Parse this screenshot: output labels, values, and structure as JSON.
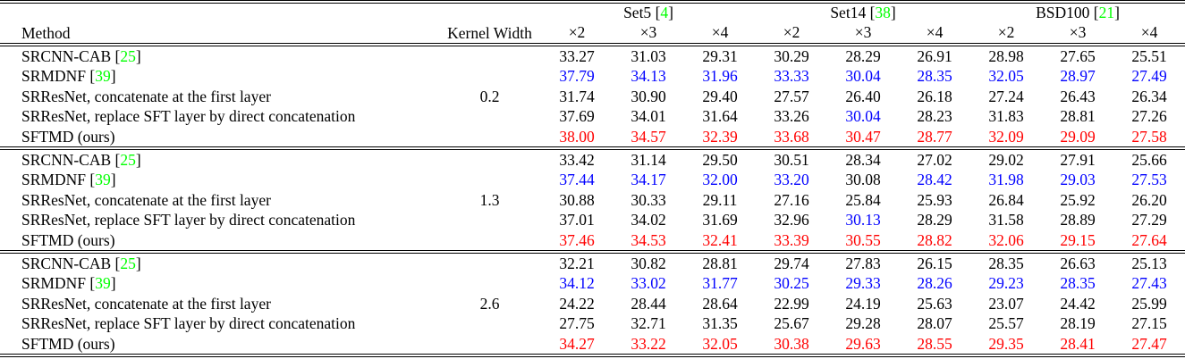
{
  "table": {
    "header": {
      "method_label": "Method",
      "kernel_width_label": "Kernel Width",
      "datasets": [
        {
          "name": "Set5",
          "cite": "4"
        },
        {
          "name": "Set14",
          "cite": "38"
        },
        {
          "name": "BSD100",
          "cite": "21"
        }
      ],
      "scales": [
        "×2",
        "×3",
        "×4"
      ]
    },
    "colors": {
      "k": "#000000",
      "b": "#0000ff",
      "r": "#ff0000",
      "citation": "#00ff00"
    },
    "groups": [
      {
        "kernel_width": "0.2",
        "rows": [
          {
            "method": "SRCNN-CAB",
            "cite": "25",
            "values": [
              "33.27",
              "31.03",
              "29.31",
              "30.29",
              "28.29",
              "26.91",
              "28.98",
              "27.65",
              "25.51"
            ],
            "value_colors": [
              "k",
              "k",
              "k",
              "k",
              "k",
              "k",
              "k",
              "k",
              "k"
            ]
          },
          {
            "method": "SRMDNF",
            "cite": "39",
            "values": [
              "37.79",
              "34.13",
              "31.96",
              "33.33",
              "30.04",
              "28.35",
              "32.05",
              "28.97",
              "27.49"
            ],
            "value_colors": [
              "b",
              "b",
              "b",
              "b",
              "b",
              "b",
              "b",
              "b",
              "b"
            ]
          },
          {
            "method": "SRResNet, concatenate at the first layer",
            "cite": "",
            "values": [
              "31.74",
              "30.90",
              "29.40",
              "27.57",
              "26.40",
              "26.18",
              "27.24",
              "26.43",
              "26.34"
            ],
            "value_colors": [
              "k",
              "k",
              "k",
              "k",
              "k",
              "k",
              "k",
              "k",
              "k"
            ]
          },
          {
            "method": "SRResNet, replace SFT layer by direct concatenation",
            "cite": "",
            "values": [
              "37.69",
              "34.01",
              "31.64",
              "33.26",
              "30.04",
              "28.23",
              "31.83",
              "28.81",
              "27.26"
            ],
            "value_colors": [
              "k",
              "k",
              "k",
              "k",
              "b",
              "k",
              "k",
              "k",
              "k"
            ]
          },
          {
            "method": "SFTMD (ours)",
            "cite": "",
            "values": [
              "38.00",
              "34.57",
              "32.39",
              "33.68",
              "30.47",
              "28.77",
              "32.09",
              "29.09",
              "27.58"
            ],
            "value_colors": [
              "r",
              "r",
              "r",
              "r",
              "r",
              "r",
              "r",
              "r",
              "r"
            ]
          }
        ]
      },
      {
        "kernel_width": "1.3",
        "rows": [
          {
            "method": "SRCNN-CAB",
            "cite": "25",
            "values": [
              "33.42",
              "31.14",
              "29.50",
              "30.51",
              "28.34",
              "27.02",
              "29.02",
              "27.91",
              "25.66"
            ],
            "value_colors": [
              "k",
              "k",
              "k",
              "k",
              "k",
              "k",
              "k",
              "k",
              "k"
            ]
          },
          {
            "method": "SRMDNF",
            "cite": "39",
            "values": [
              "37.44",
              "34.17",
              "32.00",
              "33.20",
              "30.08",
              "28.42",
              "31.98",
              "29.03",
              "27.53"
            ],
            "value_colors": [
              "b",
              "b",
              "b",
              "b",
              "k",
              "b",
              "b",
              "b",
              "b"
            ]
          },
          {
            "method": "SRResNet, concatenate at the first layer",
            "cite": "",
            "values": [
              "30.88",
              "30.33",
              "29.11",
              "27.16",
              "25.84",
              "25.93",
              "26.84",
              "25.92",
              "26.20"
            ],
            "value_colors": [
              "k",
              "k",
              "k",
              "k",
              "k",
              "k",
              "k",
              "k",
              "k"
            ]
          },
          {
            "method": "SRResNet, replace SFT layer by direct concatenation",
            "cite": "",
            "values": [
              "37.01",
              "34.02",
              "31.69",
              "32.96",
              "30.13",
              "28.29",
              "31.58",
              "28.89",
              "27.29"
            ],
            "value_colors": [
              "k",
              "k",
              "k",
              "k",
              "b",
              "k",
              "k",
              "k",
              "k"
            ]
          },
          {
            "method": "SFTMD (ours)",
            "cite": "",
            "values": [
              "37.46",
              "34.53",
              "32.41",
              "33.39",
              "30.55",
              "28.82",
              "32.06",
              "29.15",
              "27.64"
            ],
            "value_colors": [
              "r",
              "r",
              "r",
              "r",
              "r",
              "r",
              "r",
              "r",
              "r"
            ]
          }
        ]
      },
      {
        "kernel_width": "2.6",
        "rows": [
          {
            "method": "SRCNN-CAB",
            "cite": "25",
            "values": [
              "32.21",
              "30.82",
              "28.81",
              "29.74",
              "27.83",
              "26.15",
              "28.35",
              "26.63",
              "25.13"
            ],
            "value_colors": [
              "k",
              "k",
              "k",
              "k",
              "k",
              "k",
              "k",
              "k",
              "k"
            ]
          },
          {
            "method": "SRMDNF",
            "cite": "39",
            "values": [
              "34.12",
              "33.02",
              "31.77",
              "30.25",
              "29.33",
              "28.26",
              "29.23",
              "28.35",
              "27.43"
            ],
            "value_colors": [
              "b",
              "b",
              "b",
              "b",
              "b",
              "b",
              "b",
              "b",
              "b"
            ]
          },
          {
            "method": "SRResNet, concatenate at the first layer",
            "cite": "",
            "values": [
              "24.22",
              "28.44",
              "28.64",
              "22.99",
              "24.19",
              "25.63",
              "23.07",
              "24.42",
              "25.99"
            ],
            "value_colors": [
              "k",
              "k",
              "k",
              "k",
              "k",
              "k",
              "k",
              "k",
              "k"
            ]
          },
          {
            "method": "SRResNet, replace SFT layer by direct concatenation",
            "cite": "",
            "values": [
              "27.75",
              "32.71",
              "31.35",
              "25.67",
              "29.28",
              "28.07",
              "25.57",
              "28.19",
              "27.15"
            ],
            "value_colors": [
              "k",
              "k",
              "k",
              "k",
              "k",
              "k",
              "k",
              "k",
              "k"
            ]
          },
          {
            "method": "SFTMD (ours)",
            "cite": "",
            "values": [
              "34.27",
              "33.22",
              "32.05",
              "30.38",
              "29.63",
              "28.55",
              "29.35",
              "28.41",
              "27.47"
            ],
            "value_colors": [
              "r",
              "r",
              "r",
              "r",
              "r",
              "r",
              "r",
              "r",
              "r"
            ]
          }
        ]
      }
    ]
  }
}
